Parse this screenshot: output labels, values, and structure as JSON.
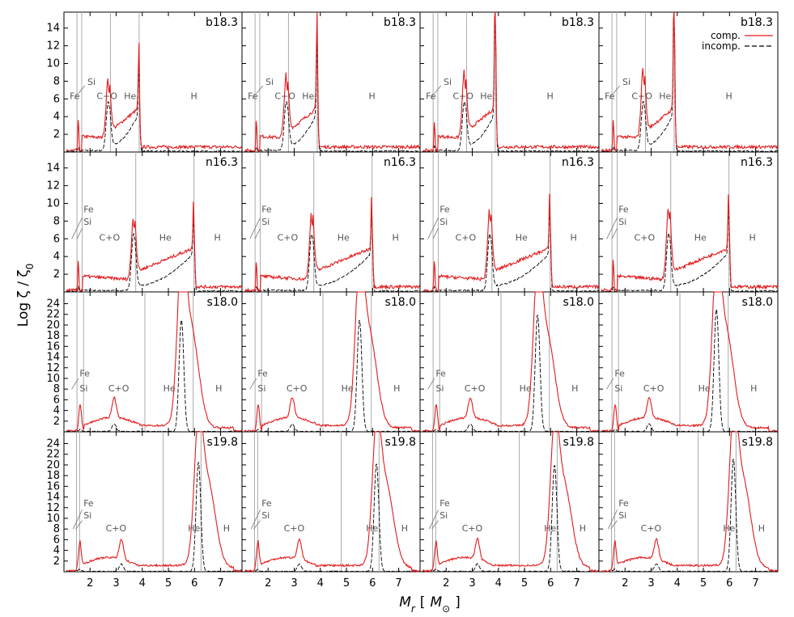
{
  "chart_data": {
    "type": "line",
    "xlabel_parts": {
      "main": "M",
      "sub": "r",
      "bracket_open": "[",
      "unit": "M",
      "unit_sub": "⊙",
      "bracket_close": "]"
    },
    "ylabel_parts": {
      "main": "Log ζ / ζ",
      "sub": "0"
    },
    "xlim": [
      1.0,
      7.85
    ],
    "x_ticks": [
      "2",
      "3",
      "4",
      "5",
      "6",
      "7"
    ],
    "legend": {
      "entries": [
        "comp.",
        "incomp."
      ],
      "position": "top-right"
    },
    "colors": {
      "comp": "#e41a1c",
      "incomp": "#000000",
      "boundary": "#aaaaaa"
    },
    "rows": [
      {
        "model": "b18.3",
        "ylim": [
          0,
          15.8
        ],
        "y_ticks": [
          "2",
          "4",
          "6",
          "8",
          "10",
          "12",
          "14"
        ],
        "boundaries": [
          1.5,
          1.68,
          2.78,
          3.88
        ],
        "labels": [
          {
            "text": "Fe",
            "x": 1.22,
            "y": 6.0
          },
          {
            "text": "Si",
            "x": 1.9,
            "y": 7.6
          },
          {
            "text": "C+O",
            "x": 2.25,
            "y": 6.0
          },
          {
            "text": "He",
            "x": 3.3,
            "y": 6.0
          },
          {
            "text": "H",
            "x": 5.85,
            "y": 6.0
          }
        ],
        "leaders": [
          {
            "from": [
              1.4,
              6.0
            ],
            "to": [
              1.5,
              6.6
            ]
          },
          {
            "from": [
              1.55,
              6.6
            ],
            "to": [
              1.8,
              7.5
            ]
          }
        ],
        "comp_peaks": [
          7.3,
          11.0,
          15.8,
          15.8
        ],
        "incomp_peaks": [
          6.2,
          9.0,
          15.8,
          15.8
        ]
      },
      {
        "model": "n16.3",
        "ylim": [
          0,
          15.8
        ],
        "y_ticks": [
          "2",
          "4",
          "6",
          "8",
          "10",
          "12",
          "14"
        ],
        "boundaries": [
          1.5,
          1.7,
          3.75,
          5.98
        ],
        "labels": [
          {
            "text": "Fe",
            "x": 1.75,
            "y": 9.0
          },
          {
            "text": "Si",
            "x": 1.75,
            "y": 7.6
          },
          {
            "text": "C+O",
            "x": 2.35,
            "y": 5.8
          },
          {
            "text": "He",
            "x": 4.65,
            "y": 5.8
          },
          {
            "text": "H",
            "x": 6.75,
            "y": 5.8
          }
        ],
        "leaders": [
          {
            "from": [
              1.3,
              6.0
            ],
            "to": [
              1.7,
              8.4
            ]
          },
          {
            "from": [
              1.5,
              6.0
            ],
            "to": [
              1.7,
              7.2
            ]
          }
        ],
        "comp_peaks": [
          7.5,
          8.2,
          8.5,
          8.8
        ],
        "incomp_peaks": [
          6.6,
          7.3,
          7.8,
          7.9
        ]
      },
      {
        "model": "s18.0",
        "ylim": [
          0,
          26.2
        ],
        "y_ticks": [
          "2",
          "4",
          "6",
          "8",
          "10",
          "12",
          "14",
          "16",
          "18",
          "20",
          "22",
          "24"
        ],
        "boundaries": [
          1.5,
          1.75,
          4.1,
          5.95
        ],
        "labels": [
          {
            "text": "Fe",
            "x": 1.6,
            "y": 10.4
          },
          {
            "text": "Si",
            "x": 1.6,
            "y": 7.6
          },
          {
            "text": "C+O",
            "x": 2.7,
            "y": 7.6
          },
          {
            "text": "He",
            "x": 4.8,
            "y": 7.6
          },
          {
            "text": "H",
            "x": 6.8,
            "y": 7.6
          }
        ],
        "leaders": [
          {
            "from": [
              1.3,
              8.0
            ],
            "to": [
              1.55,
              10.0
            ]
          }
        ],
        "comp_peaks": [
          25.0,
          24.0,
          23.2,
          24.3
        ],
        "incomp_peaks": [
          21.0,
          21.0,
          22.0,
          23.0
        ]
      },
      {
        "model": "s19.8",
        "ylim": [
          0,
          26.2
        ],
        "y_ticks": [
          "2",
          "4",
          "6",
          "8",
          "10",
          "12",
          "14",
          "16",
          "18",
          "20",
          "22",
          "24"
        ],
        "boundaries": [
          1.48,
          1.6,
          4.8,
          6.25
        ],
        "labels": [
          {
            "text": "Fe",
            "x": 1.75,
            "y": 12.3
          },
          {
            "text": "Si",
            "x": 1.75,
            "y": 10.0
          },
          {
            "text": "C+O",
            "x": 2.6,
            "y": 7.6
          },
          {
            "text": "He",
            "x": 5.75,
            "y": 7.6
          },
          {
            "text": "H",
            "x": 7.1,
            "y": 7.6
          }
        ],
        "leaders": [
          {
            "from": [
              1.35,
              8.0
            ],
            "to": [
              1.7,
              11.6
            ]
          },
          {
            "from": [
              1.45,
              8.0
            ],
            "to": [
              1.7,
              9.6
            ]
          }
        ],
        "comp_peaks": [
          21.4,
          20.8,
          20.8,
          22.0
        ],
        "incomp_peaks": [
          20.5,
          20.3,
          20.0,
          21.2
        ]
      }
    ]
  }
}
